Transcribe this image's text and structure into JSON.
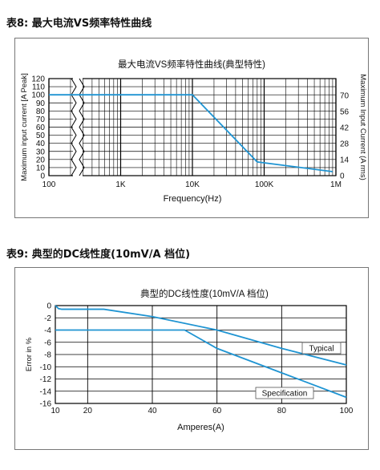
{
  "section1": {
    "heading": "表8: 最大电流VS频率特性曲线"
  },
  "section2": {
    "heading": "表9: 典型的DC线性度(10mV/A 档位)"
  },
  "chart_data": [
    {
      "type": "line",
      "title": "最大电流VS频率特性曲线(典型特性)",
      "xlabel": "Frequency(Hz)",
      "ylabel": "Maximum input current [A Peak]",
      "y2label": "Maximum Input Current (A rms)",
      "xscale": "log",
      "xlim": [
        100,
        1000000
      ],
      "ylim": [
        0,
        120
      ],
      "xticks": [
        "100",
        "1K",
        "10K",
        "100K",
        "1M"
      ],
      "yticks": [
        "0",
        "10",
        "20",
        "30",
        "40",
        "50",
        "60",
        "70",
        "80",
        "90",
        "100",
        "110",
        "120"
      ],
      "y2ticks": [
        "0",
        "14",
        "28",
        "42",
        "56",
        "70"
      ],
      "axis_break": "between 100 and 1K",
      "grid": true,
      "series": [
        {
          "x": [
            100,
            10000,
            80000,
            900000
          ],
          "y": [
            100,
            100,
            17,
            5
          ]
        }
      ],
      "color": "#1f94d2"
    },
    {
      "type": "line",
      "title": "典型的DC线性度(10mV/A 档位)",
      "xlabel": "Amperes(A)",
      "ylabel": "Error in %",
      "xlim": [
        10,
        100
      ],
      "ylim": [
        -16,
        0
      ],
      "xticks": [
        "10",
        "20",
        "40",
        "60",
        "80",
        "100"
      ],
      "yticks": [
        "0",
        "-2",
        "-4",
        "-6",
        "-8",
        "-10",
        "-12",
        "-14",
        "-16"
      ],
      "grid": true,
      "series": [
        {
          "name": "Typical",
          "x": [
            10,
            11,
            12,
            25,
            40,
            60,
            80,
            100
          ],
          "y": [
            0,
            -0.5,
            -0.6,
            -0.6,
            -1.8,
            -4,
            -7,
            -9.7
          ]
        },
        {
          "name": "Specification",
          "x": [
            10,
            50,
            60,
            80,
            100
          ],
          "y": [
            -4,
            -4,
            -7,
            -11,
            -15
          ]
        }
      ],
      "color": "#1f94d2"
    }
  ]
}
